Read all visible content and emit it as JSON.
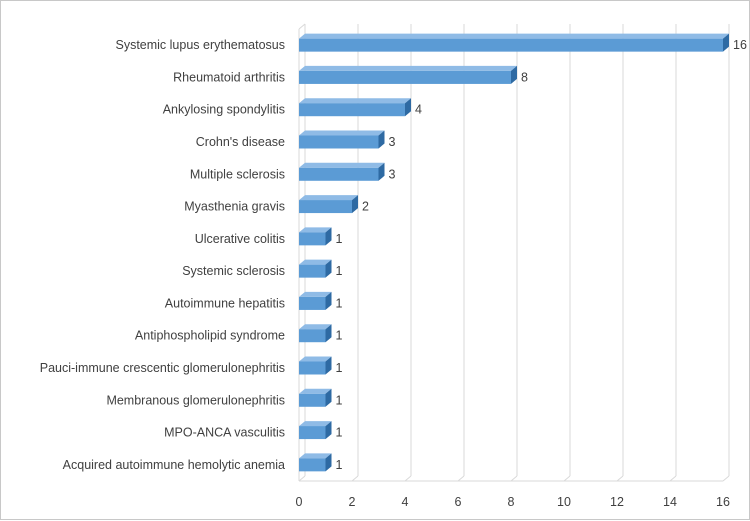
{
  "chart_data": {
    "type": "bar",
    "orientation": "horizontal",
    "style": "3d-clustered",
    "categories": [
      "Systemic lupus erythematosus",
      "Rheumatoid arthritis",
      "Ankylosing spondylitis",
      "Crohn's disease",
      "Multiple sclerosis",
      "Myasthenia gravis",
      "Ulcerative colitis",
      "Systemic sclerosis",
      "Autoimmune hepatitis",
      "Antiphospholipid syndrome",
      "Pauci-immune crescentic glomerulonephritis",
      "Membranous glomerulonephritis",
      "MPO-ANCA vasculitis",
      "Acquired autoimmune hemolytic anemia"
    ],
    "values": [
      16,
      8,
      4,
      3,
      3,
      2,
      1,
      1,
      1,
      1,
      1,
      1,
      1,
      1
    ],
    "xlim": [
      0,
      16
    ],
    "xticks": [
      "0",
      "2",
      "4",
      "6",
      "8",
      "10",
      "12",
      "14",
      "16"
    ],
    "grid": true,
    "legend": false,
    "data_labels": true,
    "bar_color": "#5b9bd5",
    "bar_side_color": "#2e6aa3",
    "bar_top_color": "#8fbbe6"
  }
}
